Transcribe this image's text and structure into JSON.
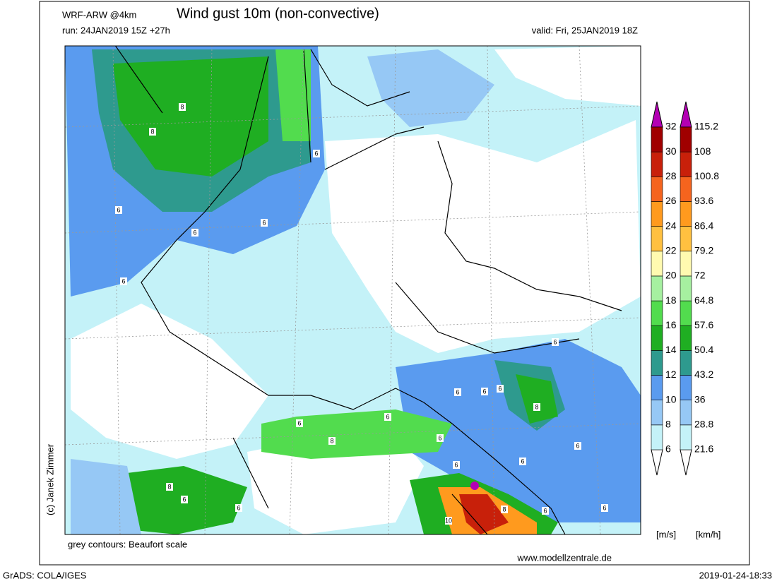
{
  "header": {
    "model": "WRF-ARW @4km",
    "title": "Wind gust 10m (non-convective)",
    "run": "run: 24JAN2019 15Z +27h",
    "valid": "valid: Fri, 25JAN2019 18Z"
  },
  "map": {
    "contour_labels": [
      "8",
      "8",
      "6",
      "6",
      "6",
      "6",
      "6",
      "6",
      "6",
      "6",
      "6",
      "8",
      "6",
      "6",
      "8",
      "6",
      "6",
      "6",
      "6",
      "8",
      "6",
      "6",
      "8",
      "10",
      "6",
      "6"
    ]
  },
  "colorbar": {
    "ms_levels": [
      6,
      8,
      10,
      12,
      14,
      16,
      18,
      20,
      22,
      24,
      26,
      28,
      30,
      32
    ],
    "kmh_levels": [
      21.6,
      28.8,
      36,
      43.2,
      50.4,
      57.6,
      64.8,
      72,
      79.2,
      86.4,
      93.6,
      100.8,
      108,
      115.2
    ],
    "colors": [
      "#c4f2f8",
      "#96c8f5",
      "#5a9bef",
      "#2e9a8e",
      "#1fae22",
      "#52dc4e",
      "#a6f0a0",
      "#fffab0",
      "#ffc040",
      "#ff9a1e",
      "#f5641e",
      "#c8200a",
      "#a00000"
    ],
    "below_color": "#ffffff",
    "above_color": "#b400b4",
    "unit_ms": "[m/s]",
    "unit_kmh": "[km/h]"
  },
  "footer": {
    "note": "grey contours: Beaufort scale",
    "website": "www.modellzentrale.de",
    "credit": "(c) Janek Zimmer",
    "software": "GrADS: COLA/IGES",
    "timestamp": "2019-01-24-18:33"
  }
}
